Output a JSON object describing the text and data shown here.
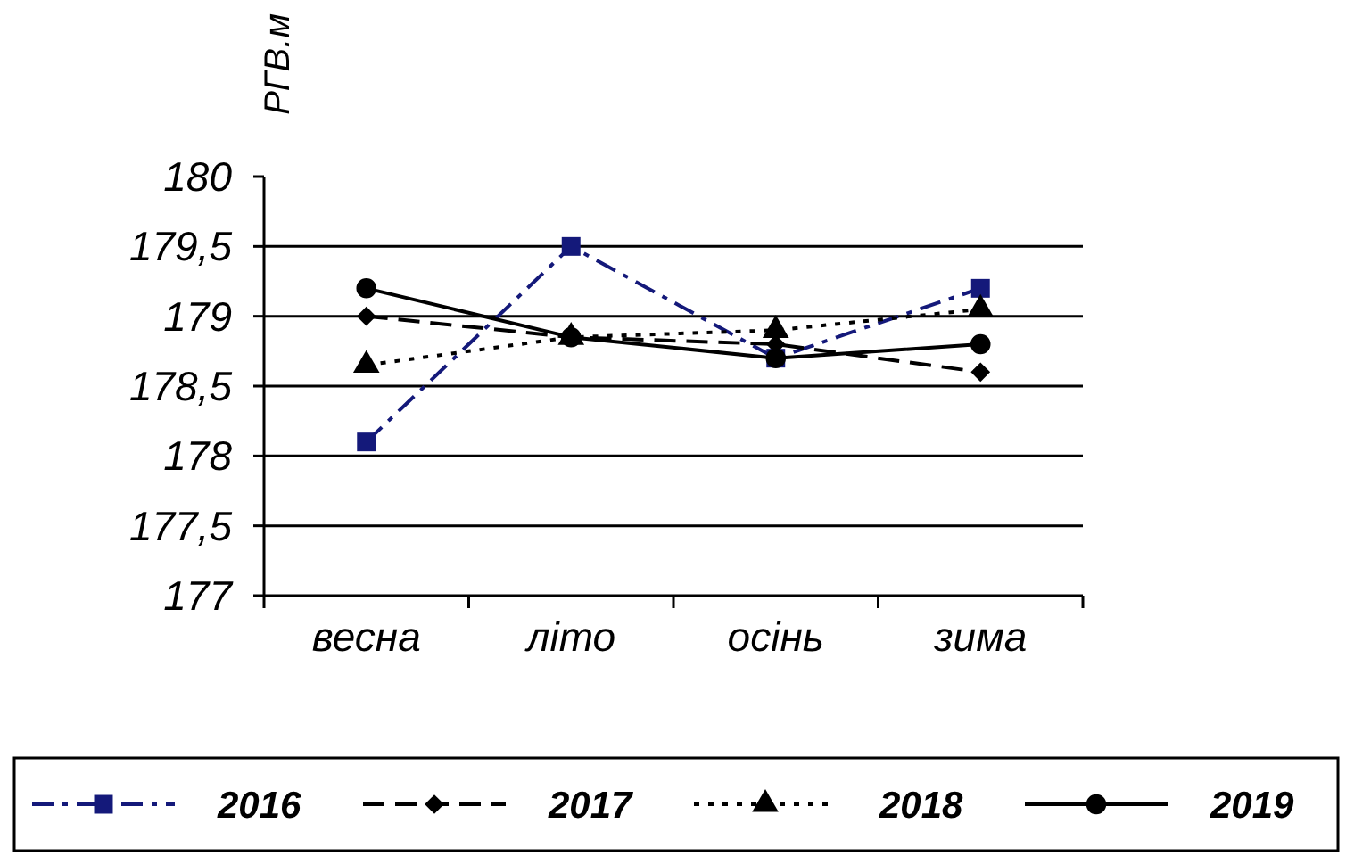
{
  "chart_data": {
    "type": "line",
    "ylabel": "РГВ.м",
    "categories": [
      "весна",
      "літо",
      "осінь",
      "зима"
    ],
    "series": [
      {
        "name": "2016",
        "color": "#14197a",
        "values": [
          178.1,
          179.5,
          178.7,
          179.2
        ],
        "marker": "square",
        "line_style": "dashdot"
      },
      {
        "name": "2017",
        "color": "#000000",
        "values": [
          179.0,
          178.85,
          178.8,
          178.6
        ],
        "marker": "diamond",
        "line_style": "dashed"
      },
      {
        "name": "2018",
        "color": "#000000",
        "values": [
          178.65,
          178.85,
          178.9,
          179.05
        ],
        "marker": "triangle",
        "line_style": "dotted"
      },
      {
        "name": "2019",
        "color": "#000000",
        "values": [
          179.2,
          178.85,
          178.7,
          178.8
        ],
        "marker": "circle",
        "line_style": "solid"
      }
    ],
    "ylim": [
      177,
      180
    ],
    "yticks": [
      177,
      {
        "value": 177.5,
        "label": "177,5"
      },
      178,
      {
        "value": 178.5,
        "label": "178,5"
      },
      179,
      {
        "value": 179.5,
        "label": "179,5"
      },
      180
    ],
    "grid": "y",
    "legend": "bottom"
  }
}
